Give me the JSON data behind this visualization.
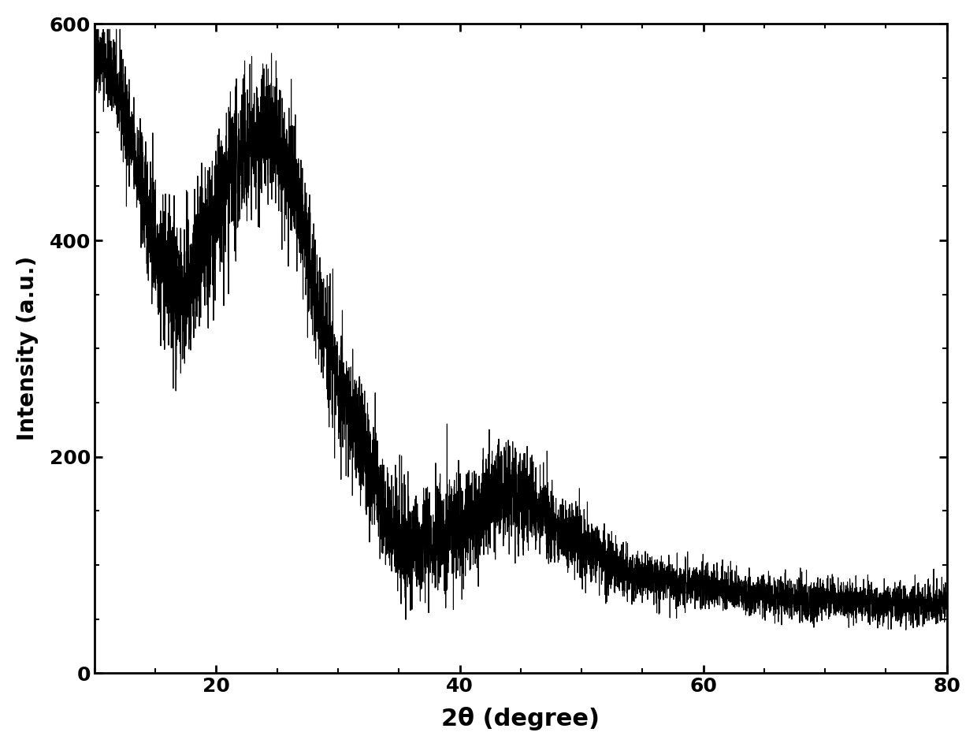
{
  "xlabel": "2θ (degree)",
  "ylabel": "Intensity (a.u.)",
  "xlim": [
    10,
    80
  ],
  "ylim": [
    0,
    600
  ],
  "xticks": [
    20,
    40,
    60,
    80
  ],
  "yticks": [
    0,
    200,
    400,
    600
  ],
  "line_color": "#000000",
  "line_width": 0.8,
  "background_color": "#ffffff",
  "xlabel_fontsize": 22,
  "ylabel_fontsize": 20,
  "tick_fontsize": 18,
  "noise_seed": 42,
  "spine_linewidth": 2.0,
  "smooth_envelope": {
    "x_points": [
      10,
      13,
      17,
      20,
      23,
      26,
      29,
      32,
      35,
      38,
      41,
      43.5,
      46,
      50,
      55,
      60,
      65,
      70,
      75,
      80
    ],
    "y_points": [
      570,
      490,
      350,
      420,
      490,
      460,
      310,
      210,
      125,
      125,
      145,
      165,
      155,
      120,
      90,
      80,
      72,
      68,
      65,
      65
    ]
  }
}
